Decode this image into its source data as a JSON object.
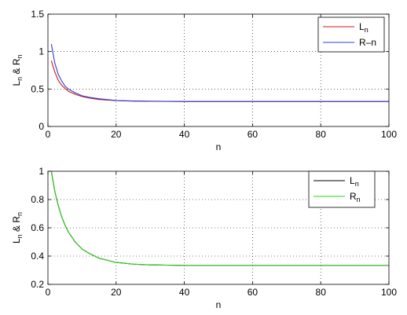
{
  "chart_data": [
    {
      "type": "line",
      "xlabel": "n",
      "ylabel": "L_n & R_n",
      "xlim": [
        0,
        100
      ],
      "ylim": [
        0,
        1.5
      ],
      "xticks": [
        0,
        20,
        40,
        60,
        80,
        100
      ],
      "yticks": [
        0,
        0.5,
        1,
        1.5
      ],
      "ytick_labels": [
        "0",
        "0.5",
        "1",
        "1.5"
      ],
      "grid": true,
      "legend_position": "top-right",
      "x": [
        1,
        2,
        3,
        4,
        5,
        6,
        8,
        10,
        12,
        15,
        20,
        25,
        30,
        40,
        50,
        60,
        70,
        80,
        90,
        100
      ],
      "series": [
        {
          "name": "L_n",
          "color": "#d0141a",
          "values": [
            0.88,
            0.73,
            0.62,
            0.55,
            0.51,
            0.47,
            0.43,
            0.4,
            0.38,
            0.36,
            0.345,
            0.339,
            0.336,
            0.334,
            0.334,
            0.334,
            0.334,
            0.334,
            0.334,
            0.334
          ]
        },
        {
          "name": "R–n",
          "color": "#2f3ed4",
          "values": [
            1.1,
            0.85,
            0.7,
            0.61,
            0.54,
            0.5,
            0.45,
            0.41,
            0.39,
            0.37,
            0.347,
            0.34,
            0.337,
            0.334,
            0.334,
            0.334,
            0.334,
            0.334,
            0.334,
            0.334
          ]
        }
      ]
    },
    {
      "type": "line",
      "xlabel": "n",
      "ylabel": "L_n & R_n",
      "xlim": [
        0,
        100
      ],
      "ylim": [
        0.2,
        1
      ],
      "xticks": [
        0,
        20,
        40,
        60,
        80,
        100
      ],
      "yticks": [
        0.2,
        0.4,
        0.6,
        0.8,
        1
      ],
      "ytick_labels": [
        "0.2",
        "0.4",
        "0.6",
        "0.8",
        "1"
      ],
      "grid": true,
      "legend_position": "top-right",
      "x": [
        1,
        2,
        3,
        4,
        5,
        6,
        8,
        10,
        12,
        15,
        20,
        25,
        30,
        40,
        50,
        60,
        70,
        80,
        90,
        100
      ],
      "series": [
        {
          "name": "L_n",
          "color": "#000000",
          "values": [
            1.0,
            0.86,
            0.76,
            0.68,
            0.62,
            0.57,
            0.5,
            0.45,
            0.42,
            0.385,
            0.355,
            0.343,
            0.338,
            0.334,
            0.334,
            0.334,
            0.334,
            0.334,
            0.334,
            0.334
          ]
        },
        {
          "name": "R_n",
          "color": "#2fcf1a",
          "values": [
            1.0,
            0.86,
            0.76,
            0.68,
            0.62,
            0.57,
            0.5,
            0.45,
            0.42,
            0.385,
            0.355,
            0.343,
            0.338,
            0.334,
            0.334,
            0.334,
            0.334,
            0.334,
            0.334,
            0.334
          ]
        }
      ]
    }
  ]
}
